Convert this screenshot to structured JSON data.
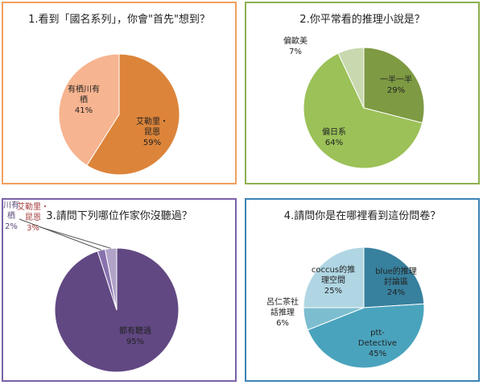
{
  "colors": {
    "panel1_border": "#F0A060",
    "panel2_border": "#8DB04E",
    "panel3_border": "#7A62A8",
    "panel4_border": "#3C84B5"
  },
  "chart_data": [
    {
      "type": "pie",
      "title": "1.看到「國名系列」，你會\"首先\"想到？",
      "categories": [
        "艾勒里・昆恩",
        "有栖川有栖"
      ],
      "values": [
        59,
        41
      ],
      "labels": [
        [
          "艾勒里・",
          "昆恩",
          "59%"
        ],
        [
          "有栖川有",
          "栖",
          "41%"
        ]
      ],
      "colors": [
        "#DC843A",
        "#F7B490"
      ]
    },
    {
      "type": "pie",
      "title": "2.你平常看的推理小說是？",
      "categories": [
        "一半一半",
        "偏日系",
        "偏歐美"
      ],
      "values": [
        29,
        64,
        7
      ],
      "labels": [
        [
          "一半一半",
          "29%"
        ],
        [
          "偏日系",
          "64%"
        ],
        [
          "偏歐美",
          "7%"
        ]
      ],
      "colors": [
        "#7E9A43",
        "#9BC158",
        "#C8D9AF"
      ]
    },
    {
      "type": "pie",
      "title": "3.請問下列哪位作家你沒聽過？",
      "categories": [
        "都有聽過",
        "有栖川有栖",
        "艾勒里・昆恩"
      ],
      "values": [
        95,
        2,
        3
      ],
      "labels": [
        [
          "都有聽過",
          "95%"
        ],
        [
          "有栖",
          "川有",
          "栖",
          "2%"
        ],
        [
          "艾勒里・",
          "昆恩",
          "3%"
        ]
      ],
      "colors": [
        "#614882",
        "#8872AE",
        "#B1A3C8"
      ]
    },
    {
      "type": "pie",
      "title": "4.請問你是在哪裡看到這份問卷？",
      "categories": [
        "blue的推理討論區",
        "ptt-Detective",
        "呂仁茶社話推理",
        "coccus的推理空間"
      ],
      "values": [
        24,
        45,
        6,
        25
      ],
      "labels": [
        [
          "blue的推理",
          "討論區",
          "24%"
        ],
        [
          "ptt-",
          "Detective",
          "45%"
        ],
        [
          "呂仁茶社",
          "話推理",
          "6%"
        ],
        [
          "coccus的推",
          "理空間",
          "25%"
        ]
      ],
      "colors": [
        "#37809E",
        "#4AA3BD",
        "#7CBECF",
        "#B0D6E3"
      ]
    }
  ]
}
